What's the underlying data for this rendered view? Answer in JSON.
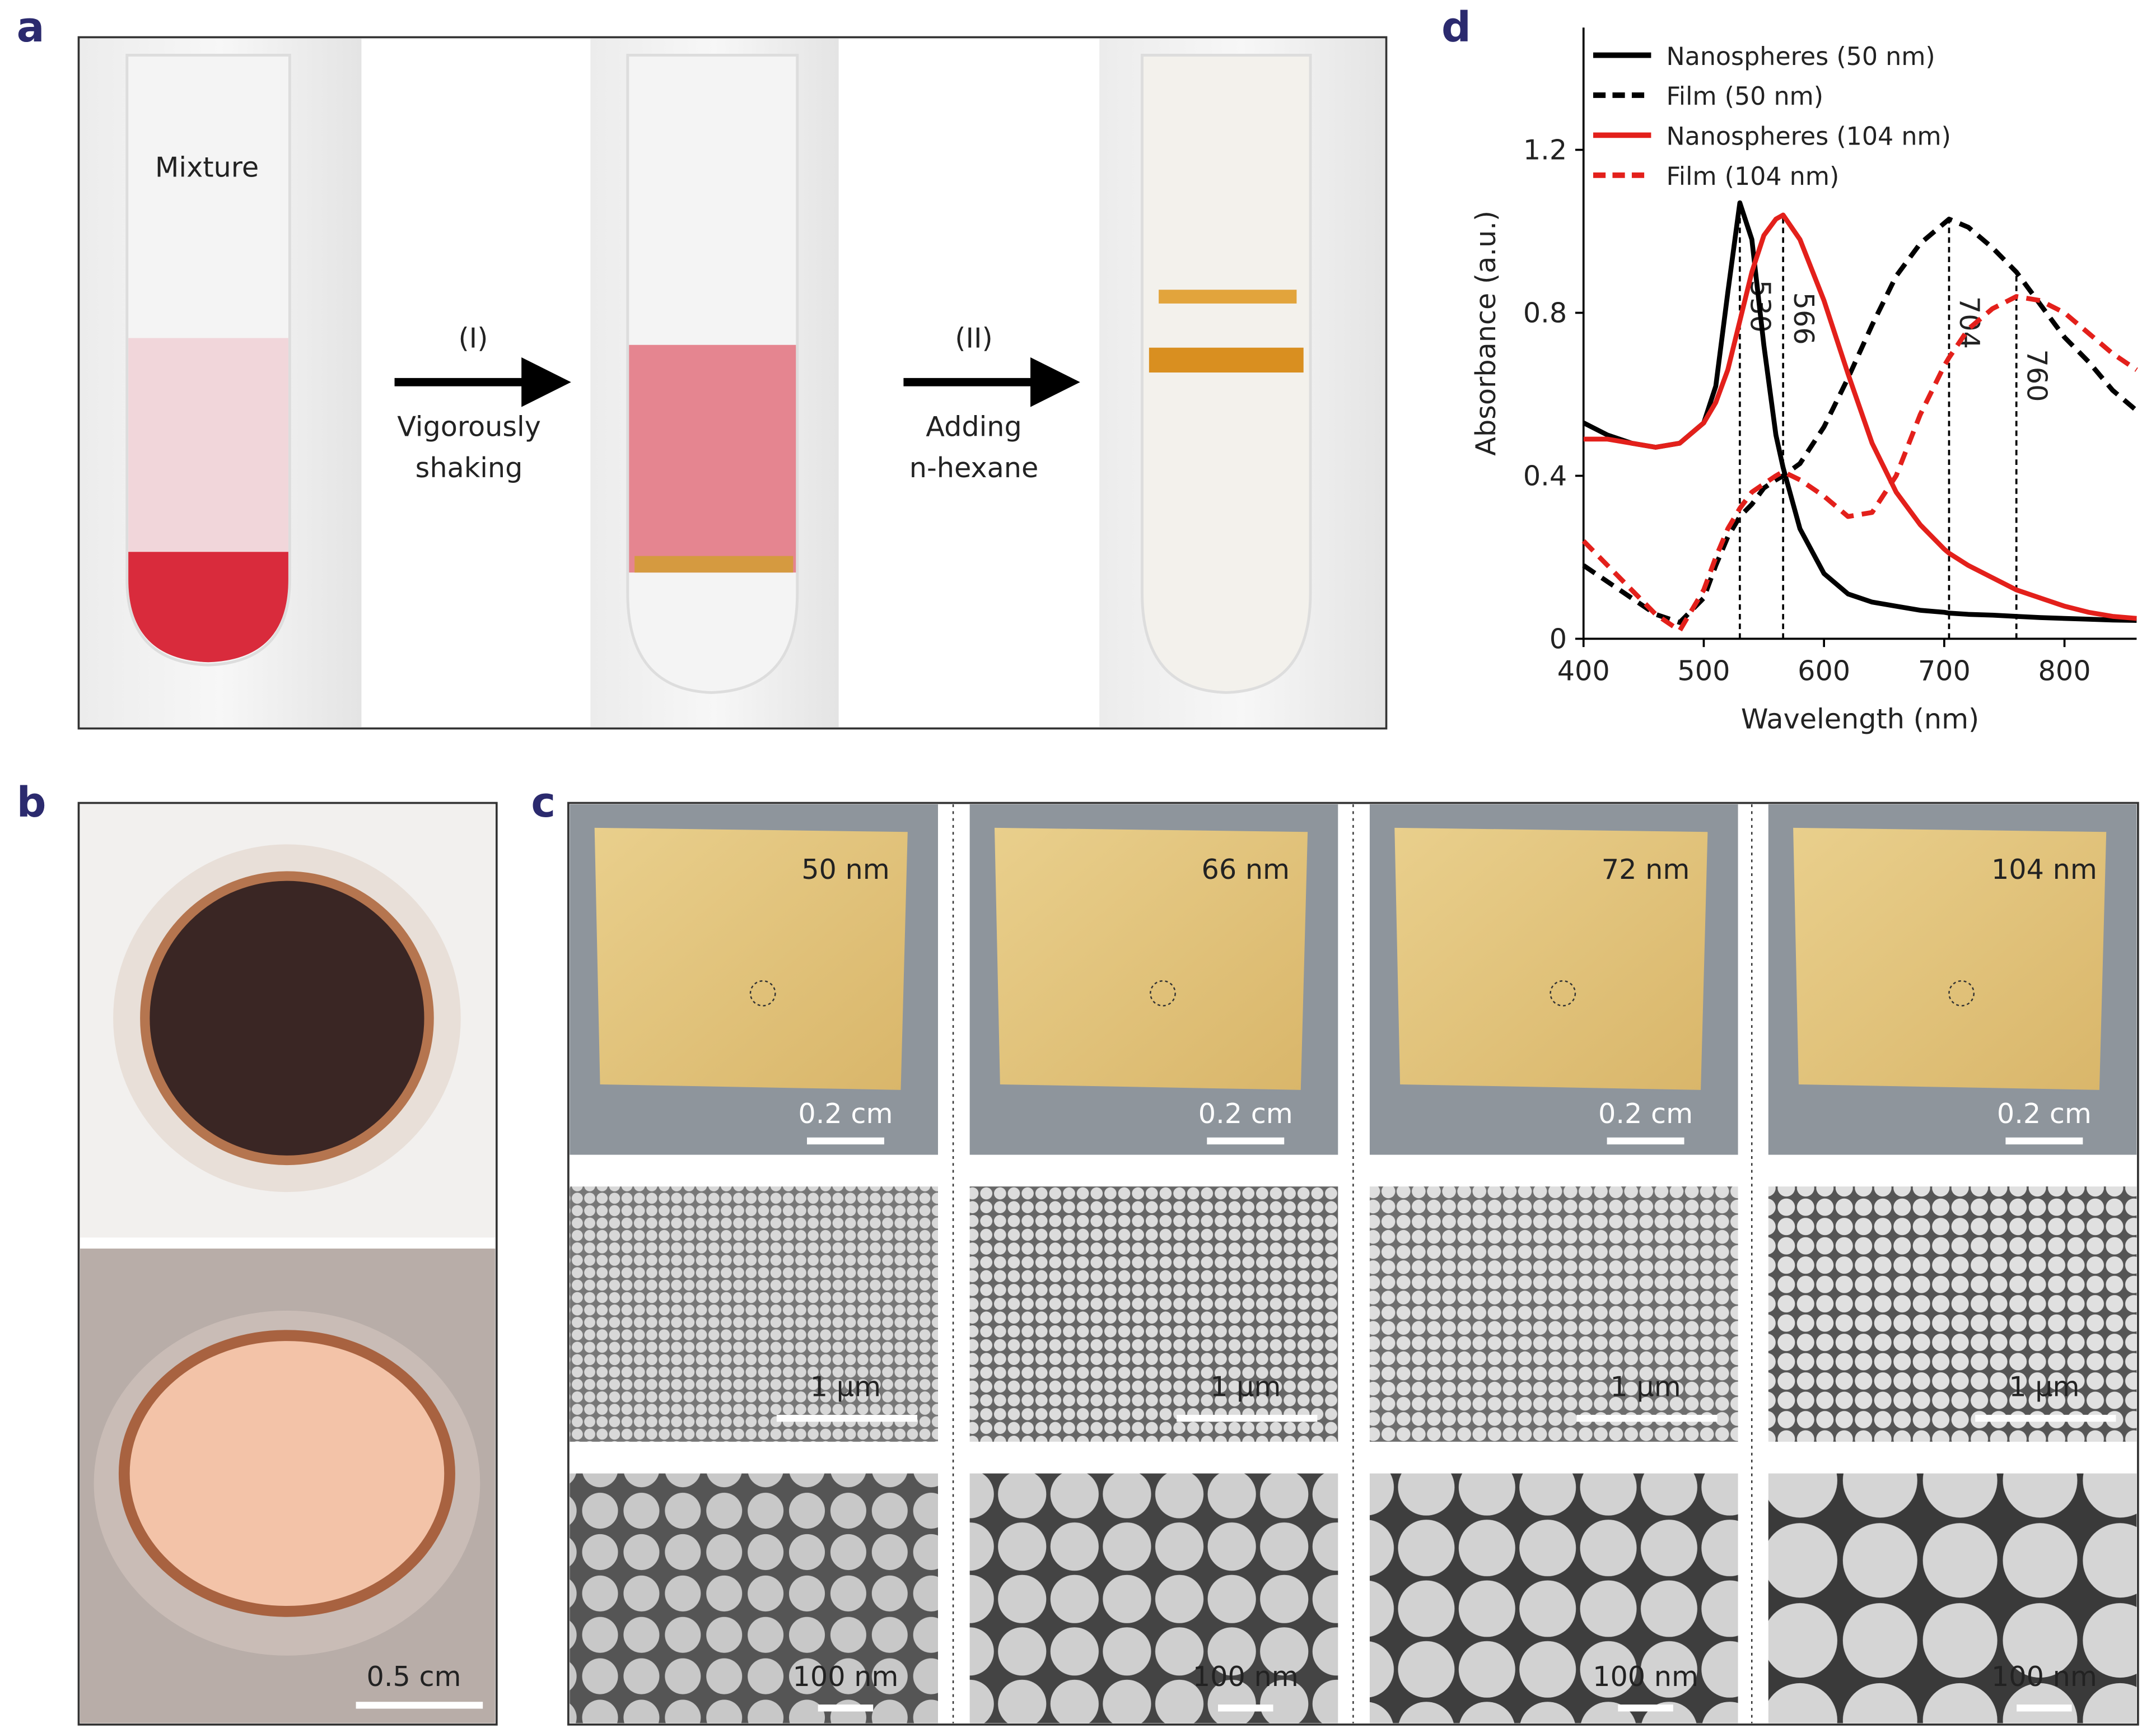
{
  "panel_a": {
    "label": "a",
    "tube_label": "Mixture",
    "step1": {
      "number": "(I)",
      "lines": [
        "Vigorously",
        "shaking"
      ]
    },
    "step2": {
      "number": "(II)",
      "lines": [
        "Adding",
        "n-hexane"
      ]
    }
  },
  "panel_b": {
    "label": "b",
    "scale_bar": "0.5 cm"
  },
  "panel_c": {
    "label": "c",
    "columns": [
      {
        "thickness": "50 nm",
        "photo_scale": "0.2 cm",
        "sem_scale": "1 µm",
        "zoom_scale": "100 nm"
      },
      {
        "thickness": "66 nm",
        "photo_scale": "0.2 cm",
        "sem_scale": "1 µm",
        "zoom_scale": "100 nm"
      },
      {
        "thickness": "72 nm",
        "photo_scale": "0.2 cm",
        "sem_scale": "1 µm",
        "zoom_scale": "100 nm"
      },
      {
        "thickness": "104 nm",
        "photo_scale": "0.2 cm",
        "sem_scale": "1 µm",
        "zoom_scale": "100 nm"
      }
    ]
  },
  "panel_d": {
    "label": "d"
  },
  "chart_data": {
    "type": "line",
    "x_label": "Wavelength (nm)",
    "y_label": "Absorbance (a.u.)",
    "x": [
      400,
      420,
      440,
      460,
      480,
      500,
      510,
      520,
      530,
      540,
      550,
      560,
      566,
      580,
      600,
      620,
      640,
      660,
      680,
      700,
      704,
      720,
      740,
      760,
      780,
      800,
      820,
      840,
      860
    ],
    "series": [
      {
        "name": "Nanospheres (50 nm)",
        "color": "#000000",
        "dashed": false,
        "values": [
          0.53,
          0.5,
          0.48,
          0.47,
          0.48,
          0.53,
          0.62,
          0.85,
          1.07,
          0.98,
          0.72,
          0.5,
          0.42,
          0.27,
          0.16,
          0.11,
          0.09,
          0.08,
          0.07,
          0.065,
          0.063,
          0.06,
          0.058,
          0.055,
          0.052,
          0.05,
          0.048,
          0.046,
          0.045
        ]
      },
      {
        "name": "Film (50 nm)",
        "color": "#000000",
        "dashed": true,
        "values": [
          0.18,
          0.14,
          0.1,
          0.06,
          0.04,
          0.1,
          0.18,
          0.25,
          0.3,
          0.33,
          0.37,
          0.39,
          0.4,
          0.43,
          0.52,
          0.64,
          0.77,
          0.89,
          0.97,
          1.02,
          1.03,
          1.01,
          0.96,
          0.9,
          0.82,
          0.74,
          0.68,
          0.61,
          0.56
        ]
      },
      {
        "name": "Nanospheres (104 nm)",
        "color": "#e3201b",
        "dashed": false,
        "values": [
          0.49,
          0.49,
          0.48,
          0.47,
          0.48,
          0.53,
          0.58,
          0.66,
          0.78,
          0.9,
          0.99,
          1.03,
          1.04,
          0.98,
          0.83,
          0.65,
          0.48,
          0.36,
          0.28,
          0.22,
          0.21,
          0.18,
          0.15,
          0.12,
          0.1,
          0.08,
          0.065,
          0.055,
          0.05
        ]
      },
      {
        "name": "Film (104 nm)",
        "color": "#e3201b",
        "dashed": true,
        "values": [
          0.24,
          0.18,
          0.12,
          0.06,
          0.02,
          0.12,
          0.2,
          0.27,
          0.32,
          0.36,
          0.38,
          0.4,
          0.41,
          0.39,
          0.35,
          0.3,
          0.31,
          0.4,
          0.55,
          0.67,
          0.69,
          0.76,
          0.81,
          0.84,
          0.83,
          0.8,
          0.75,
          0.7,
          0.66
        ]
      }
    ],
    "peak_lines": [
      530,
      566,
      704,
      760
    ],
    "xlim": [
      400,
      860
    ],
    "xticks": [
      400,
      500,
      600,
      700,
      800
    ],
    "ylim": [
      0,
      1.5
    ],
    "yticks": [
      0,
      0.4,
      0.8,
      1.2
    ],
    "legend": "upper left"
  }
}
